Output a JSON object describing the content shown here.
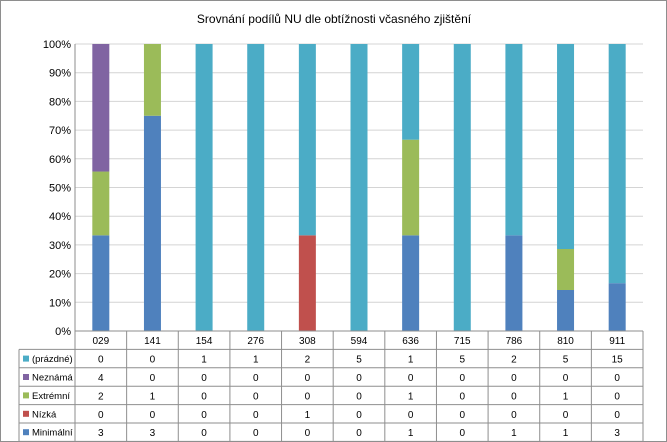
{
  "chart_data": {
    "type": "bar",
    "stacked": "percent",
    "title": "Srovnání podílů NU  dle obtížnosti včasného zjištění",
    "xlabel": "",
    "ylabel": "",
    "ylim": [
      0,
      100
    ],
    "y_ticks": [
      "0%",
      "10%",
      "20%",
      "30%",
      "40%",
      "50%",
      "60%",
      "70%",
      "80%",
      "90%",
      "100%"
    ],
    "grid": true,
    "legend": "data-table-left",
    "categories": [
      "029",
      "141",
      "154",
      "276",
      "308",
      "594",
      "636",
      "715",
      "786",
      "810",
      "911"
    ],
    "series": [
      {
        "name": "Minimální",
        "color": "#4f81bd",
        "values": [
          3,
          3,
          0,
          0,
          0,
          0,
          1,
          0,
          1,
          1,
          3
        ]
      },
      {
        "name": "Nízká",
        "color": "#c0504d",
        "values": [
          0,
          0,
          0,
          0,
          1,
          0,
          0,
          0,
          0,
          0,
          0
        ]
      },
      {
        "name": "Extrémní",
        "color": "#9bbb59",
        "values": [
          2,
          1,
          0,
          0,
          0,
          0,
          1,
          0,
          0,
          1,
          0
        ]
      },
      {
        "name": "Neznámá",
        "color": "#8064a2",
        "values": [
          4,
          0,
          0,
          0,
          0,
          0,
          0,
          0,
          0,
          0,
          0
        ]
      },
      {
        "name": "(prázdné)",
        "color": "#4bacc6",
        "values": [
          0,
          0,
          1,
          1,
          2,
          5,
          1,
          5,
          2,
          5,
          15
        ]
      }
    ]
  }
}
